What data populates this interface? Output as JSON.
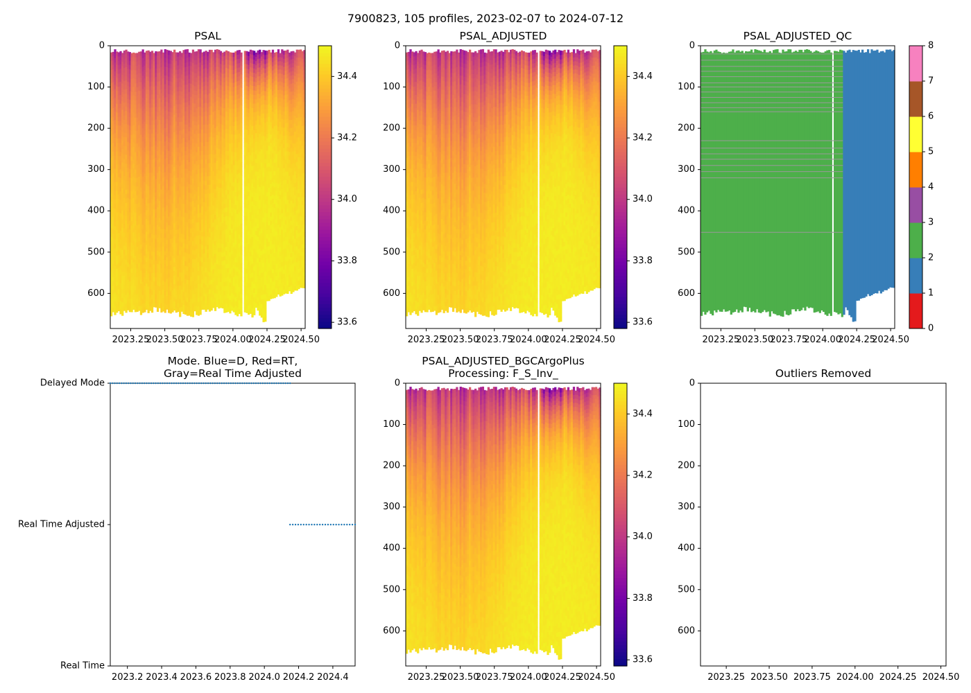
{
  "figure": {
    "suptitle": "7900823, 105 profiles, 2023-02-07 to 2024-07-12"
  },
  "colors": {
    "plasma": [
      "#f0f921",
      "#fdca26",
      "#fb9f3a",
      "#ed7953",
      "#d8576b",
      "#bd3786",
      "#9c179e",
      "#7201a8",
      "#46039f",
      "#0d0887"
    ],
    "qc": [
      "#e41a1c",
      "#377eb8",
      "#4daf4a",
      "#984ea3",
      "#ff7f00",
      "#ffff33",
      "#a65628",
      "#f781bf",
      "#999999"
    ],
    "mode_dots": "#1f77b4"
  },
  "chart_data": [
    {
      "id": "psal",
      "type": "heatmap",
      "title": "PSAL",
      "xlim": [
        2023.1,
        2024.53
      ],
      "ylim": [
        685,
        0
      ],
      "xticks": [
        "2023.25",
        "2023.50",
        "2023.75",
        "2024.00",
        "2024.25",
        "2024.50"
      ],
      "xtick_values": [
        2023.25,
        2023.5,
        2023.75,
        2024.0,
        2024.25,
        2024.5
      ],
      "yticks": [
        "0",
        "100",
        "200",
        "300",
        "400",
        "500",
        "600"
      ],
      "ytick_values": [
        0,
        100,
        200,
        300,
        400,
        500,
        600
      ],
      "colorbar": {
        "range": [
          33.58,
          34.5
        ],
        "ticks": [
          "33.6",
          "33.8",
          "34.0",
          "34.2",
          "34.4"
        ],
        "tick_values": [
          33.6,
          33.8,
          34.0,
          34.2,
          34.4
        ]
      }
    },
    {
      "id": "psal_adj",
      "type": "heatmap",
      "title": "PSAL_ADJUSTED",
      "xlim": [
        2023.1,
        2024.53
      ],
      "ylim": [
        685,
        0
      ],
      "xticks": [
        "2023.25",
        "2023.50",
        "2023.75",
        "2024.00",
        "2024.25",
        "2024.50"
      ],
      "xtick_values": [
        2023.25,
        2023.5,
        2023.75,
        2024.0,
        2024.25,
        2024.5
      ],
      "yticks": [
        "0",
        "100",
        "200",
        "300",
        "400",
        "500",
        "600"
      ],
      "ytick_values": [
        0,
        100,
        200,
        300,
        400,
        500,
        600
      ],
      "colorbar": {
        "range": [
          33.58,
          34.5
        ],
        "ticks": [
          "33.6",
          "33.8",
          "34.0",
          "34.2",
          "34.4"
        ],
        "tick_values": [
          33.6,
          33.8,
          34.0,
          34.2,
          34.4
        ]
      }
    },
    {
      "id": "psal_qc",
      "type": "heatmap",
      "title": "PSAL_ADJUSTED_QC",
      "xlim": [
        2023.1,
        2024.53
      ],
      "ylim": [
        685,
        0
      ],
      "xticks": [
        "2023.25",
        "2023.50",
        "2023.75",
        "2024.00",
        "2024.25",
        "2024.50"
      ],
      "xtick_values": [
        2023.25,
        2023.5,
        2023.75,
        2024.0,
        2024.25,
        2024.5
      ],
      "yticks": [
        "0",
        "100",
        "200",
        "300",
        "400",
        "500",
        "600"
      ],
      "ytick_values": [
        0,
        100,
        200,
        300,
        400,
        500,
        600
      ],
      "qc_split": 2024.15,
      "colorbar": {
        "range": [
          0,
          8
        ],
        "ticks": [
          "0",
          "1",
          "2",
          "3",
          "4",
          "5",
          "6",
          "7",
          "8"
        ],
        "tick_values": [
          0,
          1,
          2,
          3,
          4,
          5,
          6,
          7,
          8
        ]
      }
    },
    {
      "id": "mode",
      "type": "scatter",
      "title_lines": [
        "Mode. Blue=D, Red=RT,",
        "Gray=Real Time Adjusted"
      ],
      "xlim": [
        2023.1,
        2024.53
      ],
      "ylim": [
        0,
        2
      ],
      "xticks": [
        "2023.2",
        "2023.4",
        "2023.6",
        "2023.8",
        "2024.0",
        "2024.2",
        "2024.4"
      ],
      "xtick_values": [
        2023.2,
        2023.4,
        2023.6,
        2023.8,
        2024.0,
        2024.2,
        2024.4
      ],
      "yticks": [
        "Real Time",
        "Real Time Adjusted",
        "Delayed Mode"
      ],
      "ytick_values": [
        0,
        1,
        2
      ],
      "series": [
        {
          "name": "Delayed Mode",
          "y": 2,
          "x_range": [
            2023.1,
            2024.15
          ],
          "count": 80
        },
        {
          "name": "Real Time Adjusted",
          "y": 1,
          "x_range": [
            2024.15,
            2024.53
          ],
          "count": 25
        }
      ]
    },
    {
      "id": "psal_bgc",
      "type": "heatmap",
      "title_lines": [
        "PSAL_ADJUSTED_BGCArgoPlus",
        "Processing: F_S_Inv_"
      ],
      "xlim": [
        2023.1,
        2024.53
      ],
      "ylim": [
        685,
        0
      ],
      "xticks": [
        "2023.25",
        "2023.50",
        "2023.75",
        "2024.00",
        "2024.25",
        "2024.50"
      ],
      "xtick_values": [
        2023.25,
        2023.5,
        2023.75,
        2024.0,
        2024.25,
        2024.5
      ],
      "yticks": [
        "0",
        "100",
        "200",
        "300",
        "400",
        "500",
        "600"
      ],
      "ytick_values": [
        0,
        100,
        200,
        300,
        400,
        500,
        600
      ],
      "colorbar": {
        "range": [
          33.58,
          34.5
        ],
        "ticks": [
          "33.6",
          "33.8",
          "34.0",
          "34.2",
          "34.4"
        ],
        "tick_values": [
          33.6,
          33.8,
          34.0,
          34.2,
          34.4
        ]
      }
    },
    {
      "id": "outliers",
      "type": "scatter",
      "title": "Outliers Removed",
      "xlim": [
        2023.1,
        2024.53
      ],
      "ylim": [
        685,
        0
      ],
      "xticks": [
        "2023.25",
        "2023.50",
        "2023.75",
        "2024.00",
        "2024.25",
        "2024.50"
      ],
      "xtick_values": [
        2023.25,
        2023.5,
        2023.75,
        2024.0,
        2024.25,
        2024.5
      ],
      "yticks": [
        "0",
        "100",
        "200",
        "300",
        "400",
        "500",
        "600"
      ],
      "ytick_values": [
        0,
        100,
        200,
        300,
        400,
        500,
        600
      ],
      "points": []
    }
  ]
}
